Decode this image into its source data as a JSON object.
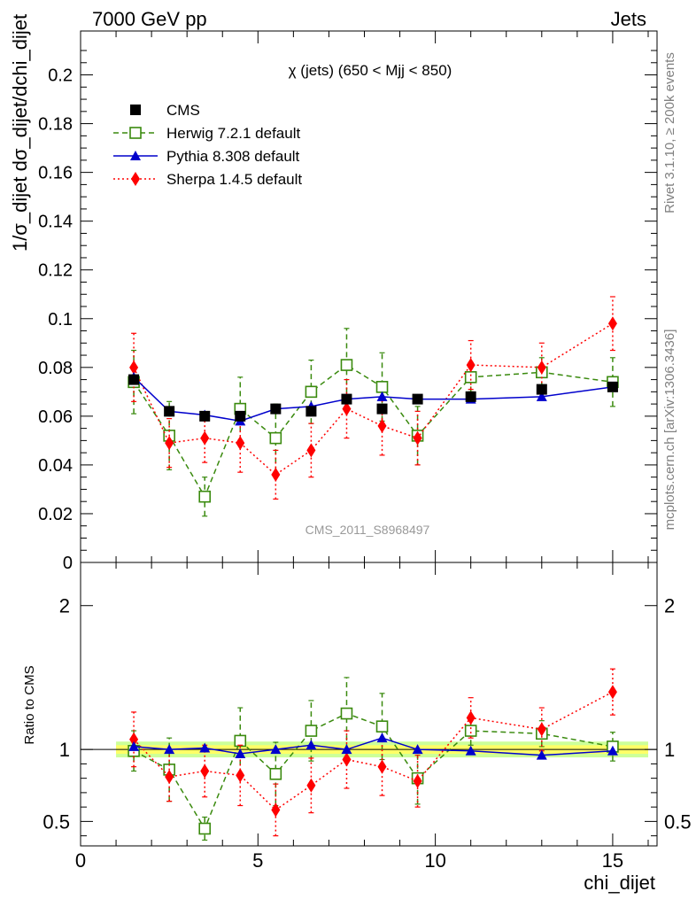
{
  "header": {
    "left": "7000 GeV pp",
    "right": "Jets"
  },
  "side_labels": {
    "rivet": "Rivet 3.1.10, ≥ 200k events",
    "mcplots": "mcplots.cern.ch [arXiv:1306.3436]"
  },
  "watermark": "CMS_2011_S8968497",
  "colors": {
    "cms": "#000000",
    "herwig": "#3a8a0e",
    "pythia": "#0000cc",
    "sherpa": "#ff0000",
    "band_inner": "#ffff66",
    "band_outer": "#ccff99"
  },
  "chart_data": [
    {
      "type": "scatter",
      "title": "χ (jets) (650 < Mjj <  850)",
      "ylabel": "1/σ_dijet dσ_dijet/dchi_dijet",
      "xlim": [
        0,
        16.25
      ],
      "ylim": [
        0,
        0.218
      ],
      "y_tick_labels": [
        "0",
        "0.02",
        "0.04",
        "0.06",
        "0.08",
        "0.1",
        "0.12",
        "0.14",
        "0.16",
        "0.18",
        "0.2"
      ],
      "legend": [
        "CMS",
        "Herwig 7.2.1 default",
        "Pythia 8.308 default",
        "Sherpa 1.4.5 default"
      ],
      "legend_position": "top-left",
      "series": [
        {
          "name": "CMS",
          "style": "square",
          "x": [
            1.5,
            2.5,
            3.5,
            4.5,
            5.5,
            6.5,
            7.5,
            8.5,
            9.5,
            11,
            13,
            15
          ],
          "y": [
            0.075,
            0.062,
            0.06,
            0.06,
            0.063,
            0.062,
            0.067,
            0.063,
            0.067,
            0.068,
            0.071,
            0.072
          ]
        },
        {
          "name": "Herwig 7.2.1 default",
          "style": "open-square",
          "x": [
            1.5,
            2.5,
            3.5,
            4.5,
            5.5,
            6.5,
            7.5,
            8.5,
            9.5,
            11,
            13,
            15
          ],
          "y": [
            0.074,
            0.052,
            0.027,
            0.063,
            0.051,
            0.07,
            0.081,
            0.072,
            0.052,
            0.076,
            0.078,
            0.074
          ],
          "err": [
            0.013,
            0.014,
            0.008,
            0.013,
            0.014,
            0.013,
            0.015,
            0.014,
            0.012,
            0.006,
            0.006,
            0.01
          ]
        },
        {
          "name": "Pythia 8.308 default",
          "style": "triangle",
          "x": [
            1.5,
            2.5,
            3.5,
            4.5,
            5.5,
            6.5,
            7.5,
            8.5,
            9.5,
            11,
            13,
            15
          ],
          "y": [
            0.076,
            0.062,
            0.0605,
            0.058,
            0.063,
            0.064,
            0.067,
            0.068,
            0.067,
            0.067,
            0.068,
            0.072
          ]
        },
        {
          "name": "Sherpa 1.4.5 default",
          "style": "diamond",
          "x": [
            1.5,
            2.5,
            3.5,
            4.5,
            5.5,
            6.5,
            7.5,
            8.5,
            9.5,
            11,
            13,
            15
          ],
          "y": [
            0.08,
            0.049,
            0.051,
            0.049,
            0.036,
            0.046,
            0.063,
            0.056,
            0.051,
            0.081,
            0.08,
            0.098
          ],
          "err": [
            0.014,
            0.01,
            0.01,
            0.012,
            0.01,
            0.011,
            0.012,
            0.012,
            0.011,
            0.01,
            0.01,
            0.011
          ]
        }
      ]
    },
    {
      "type": "scatter",
      "title": "",
      "ylabel": "Ratio to CMS",
      "xlabel": "chi_dijet",
      "xlim": [
        0,
        16.25
      ],
      "ylim": [
        0.33,
        2.3
      ],
      "y_tick_labels": [
        "0.5",
        "1",
        "2"
      ],
      "x_tick_labels": [
        "0",
        "5",
        "10",
        "15"
      ],
      "band": {
        "inner": 0.03,
        "outer": 0.055
      },
      "series": [
        {
          "name": "Herwig 7.2.1 default",
          "style": "open-square",
          "x": [
            1.5,
            2.5,
            3.5,
            4.5,
            5.5,
            6.5,
            7.5,
            8.5,
            9.5,
            11,
            13,
            15
          ],
          "y": [
            0.99,
            0.86,
            0.45,
            1.06,
            0.83,
            1.13,
            1.25,
            1.16,
            0.8,
            1.13,
            1.11,
            1.02
          ],
          "err": [
            0.14,
            0.22,
            0.08,
            0.23,
            0.22,
            0.21,
            0.25,
            0.23,
            0.18,
            0.1,
            0.09,
            0.1
          ]
        },
        {
          "name": "Pythia 8.308 default",
          "style": "triangle",
          "x": [
            1.5,
            2.5,
            3.5,
            4.5,
            5.5,
            6.5,
            7.5,
            8.5,
            9.5,
            11,
            13,
            15
          ],
          "y": [
            1.02,
            1.0,
            1.01,
            0.97,
            1.0,
            1.03,
            1.0,
            1.08,
            1.0,
            0.99,
            0.96,
            0.99
          ]
        },
        {
          "name": "Sherpa 1.4.5 default",
          "style": "diamond",
          "x": [
            1.5,
            2.5,
            3.5,
            4.5,
            5.5,
            6.5,
            7.5,
            8.5,
            9.5,
            11,
            13,
            15
          ],
          "y": [
            1.07,
            0.81,
            0.85,
            0.82,
            0.58,
            0.75,
            0.93,
            0.88,
            0.78,
            1.22,
            1.14,
            1.4
          ],
          "err": [
            0.19,
            0.17,
            0.18,
            0.21,
            0.18,
            0.19,
            0.2,
            0.2,
            0.18,
            0.14,
            0.15,
            0.16
          ]
        }
      ]
    }
  ]
}
